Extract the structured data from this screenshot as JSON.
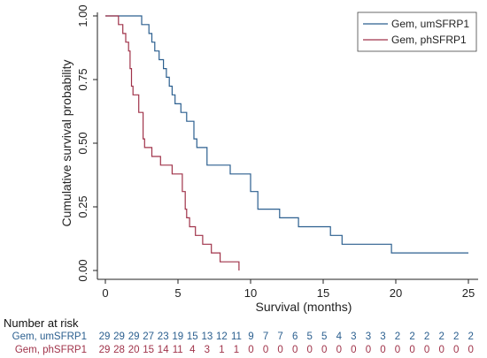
{
  "chart_data": {
    "type": "line",
    "step": true,
    "xlabel": "Survival (months)",
    "ylabel": "Cumulative survival probability",
    "xlim": [
      0,
      25
    ],
    "ylim": [
      0,
      1
    ],
    "xticks": [
      "0",
      "5",
      "10",
      "15",
      "20",
      "25"
    ],
    "yticks": [
      "0.00",
      "0.25",
      "0.50",
      "0.75",
      "1.00"
    ],
    "grid": false,
    "legend": "top-right",
    "series": [
      {
        "name": "Gem, umSFRP1",
        "color": "#2b5f8f",
        "points": [
          [
            0,
            1.0
          ],
          [
            2.5,
            1.0
          ],
          [
            2.5,
            0.966
          ],
          [
            3.0,
            0.966
          ],
          [
            3.0,
            0.931
          ],
          [
            3.2,
            0.931
          ],
          [
            3.2,
            0.897
          ],
          [
            3.4,
            0.897
          ],
          [
            3.4,
            0.862
          ],
          [
            3.7,
            0.862
          ],
          [
            3.7,
            0.828
          ],
          [
            4.0,
            0.828
          ],
          [
            4.0,
            0.793
          ],
          [
            4.2,
            0.793
          ],
          [
            4.2,
            0.759
          ],
          [
            4.4,
            0.759
          ],
          [
            4.4,
            0.724
          ],
          [
            4.6,
            0.724
          ],
          [
            4.6,
            0.69
          ],
          [
            4.8,
            0.69
          ],
          [
            4.8,
            0.655
          ],
          [
            5.2,
            0.655
          ],
          [
            5.2,
            0.621
          ],
          [
            5.6,
            0.621
          ],
          [
            5.6,
            0.586
          ],
          [
            6.1,
            0.586
          ],
          [
            6.1,
            0.517
          ],
          [
            6.3,
            0.517
          ],
          [
            6.3,
            0.483
          ],
          [
            7.0,
            0.483
          ],
          [
            7.0,
            0.414
          ],
          [
            8.6,
            0.414
          ],
          [
            8.6,
            0.379
          ],
          [
            10.0,
            0.379
          ],
          [
            10.0,
            0.31
          ],
          [
            10.5,
            0.31
          ],
          [
            10.5,
            0.241
          ],
          [
            12.0,
            0.241
          ],
          [
            12.0,
            0.207
          ],
          [
            13.3,
            0.207
          ],
          [
            13.3,
            0.172
          ],
          [
            15.5,
            0.172
          ],
          [
            15.5,
            0.138
          ],
          [
            16.3,
            0.138
          ],
          [
            16.3,
            0.103
          ],
          [
            19.7,
            0.103
          ],
          [
            19.7,
            0.069
          ],
          [
            25.0,
            0.069
          ]
        ]
      },
      {
        "name": "Gem, phSFRP1",
        "color": "#a0334a",
        "points": [
          [
            0,
            1.0
          ],
          [
            0.9,
            1.0
          ],
          [
            0.9,
            0.966
          ],
          [
            1.2,
            0.966
          ],
          [
            1.2,
            0.931
          ],
          [
            1.4,
            0.931
          ],
          [
            1.4,
            0.897
          ],
          [
            1.6,
            0.897
          ],
          [
            1.6,
            0.862
          ],
          [
            1.7,
            0.862
          ],
          [
            1.7,
            0.793
          ],
          [
            1.8,
            0.793
          ],
          [
            1.8,
            0.724
          ],
          [
            1.9,
            0.724
          ],
          [
            1.9,
            0.69
          ],
          [
            2.3,
            0.69
          ],
          [
            2.3,
            0.621
          ],
          [
            2.6,
            0.621
          ],
          [
            2.6,
            0.517
          ],
          [
            2.7,
            0.517
          ],
          [
            2.7,
            0.483
          ],
          [
            3.2,
            0.483
          ],
          [
            3.2,
            0.448
          ],
          [
            3.8,
            0.448
          ],
          [
            3.8,
            0.414
          ],
          [
            4.6,
            0.414
          ],
          [
            4.6,
            0.379
          ],
          [
            5.3,
            0.379
          ],
          [
            5.3,
            0.31
          ],
          [
            5.5,
            0.31
          ],
          [
            5.5,
            0.241
          ],
          [
            5.6,
            0.241
          ],
          [
            5.6,
            0.207
          ],
          [
            5.8,
            0.207
          ],
          [
            5.8,
            0.172
          ],
          [
            6.2,
            0.172
          ],
          [
            6.2,
            0.138
          ],
          [
            6.7,
            0.138
          ],
          [
            6.7,
            0.103
          ],
          [
            7.3,
            0.103
          ],
          [
            7.3,
            0.069
          ],
          [
            7.9,
            0.069
          ],
          [
            7.9,
            0.034
          ],
          [
            9.2,
            0.034
          ],
          [
            9.2,
            0.0
          ]
        ]
      }
    ],
    "risk_table": {
      "title": "Number at risk",
      "rows": [
        {
          "label": "Gem, umSFRP1",
          "color": "#2b5f8f",
          "values": [
            "29",
            "29",
            "29",
            "27",
            "23",
            "19",
            "15",
            "13",
            "12",
            "11",
            "9",
            "7",
            "7",
            "6",
            "5",
            "5",
            "4",
            "3",
            "3",
            "3",
            "2",
            "2",
            "2",
            "2",
            "2",
            "2"
          ]
        },
        {
          "label": "Gem, phSFRP1",
          "color": "#a0334a",
          "values": [
            "29",
            "28",
            "20",
            "15",
            "14",
            "11",
            "4",
            "3",
            "1",
            "1",
            "0",
            "0",
            "0",
            "0",
            "0",
            "0",
            "0",
            "0",
            "0",
            "0",
            "0",
            "0",
            "0",
            "0",
            "0",
            "0"
          ]
        }
      ]
    }
  }
}
